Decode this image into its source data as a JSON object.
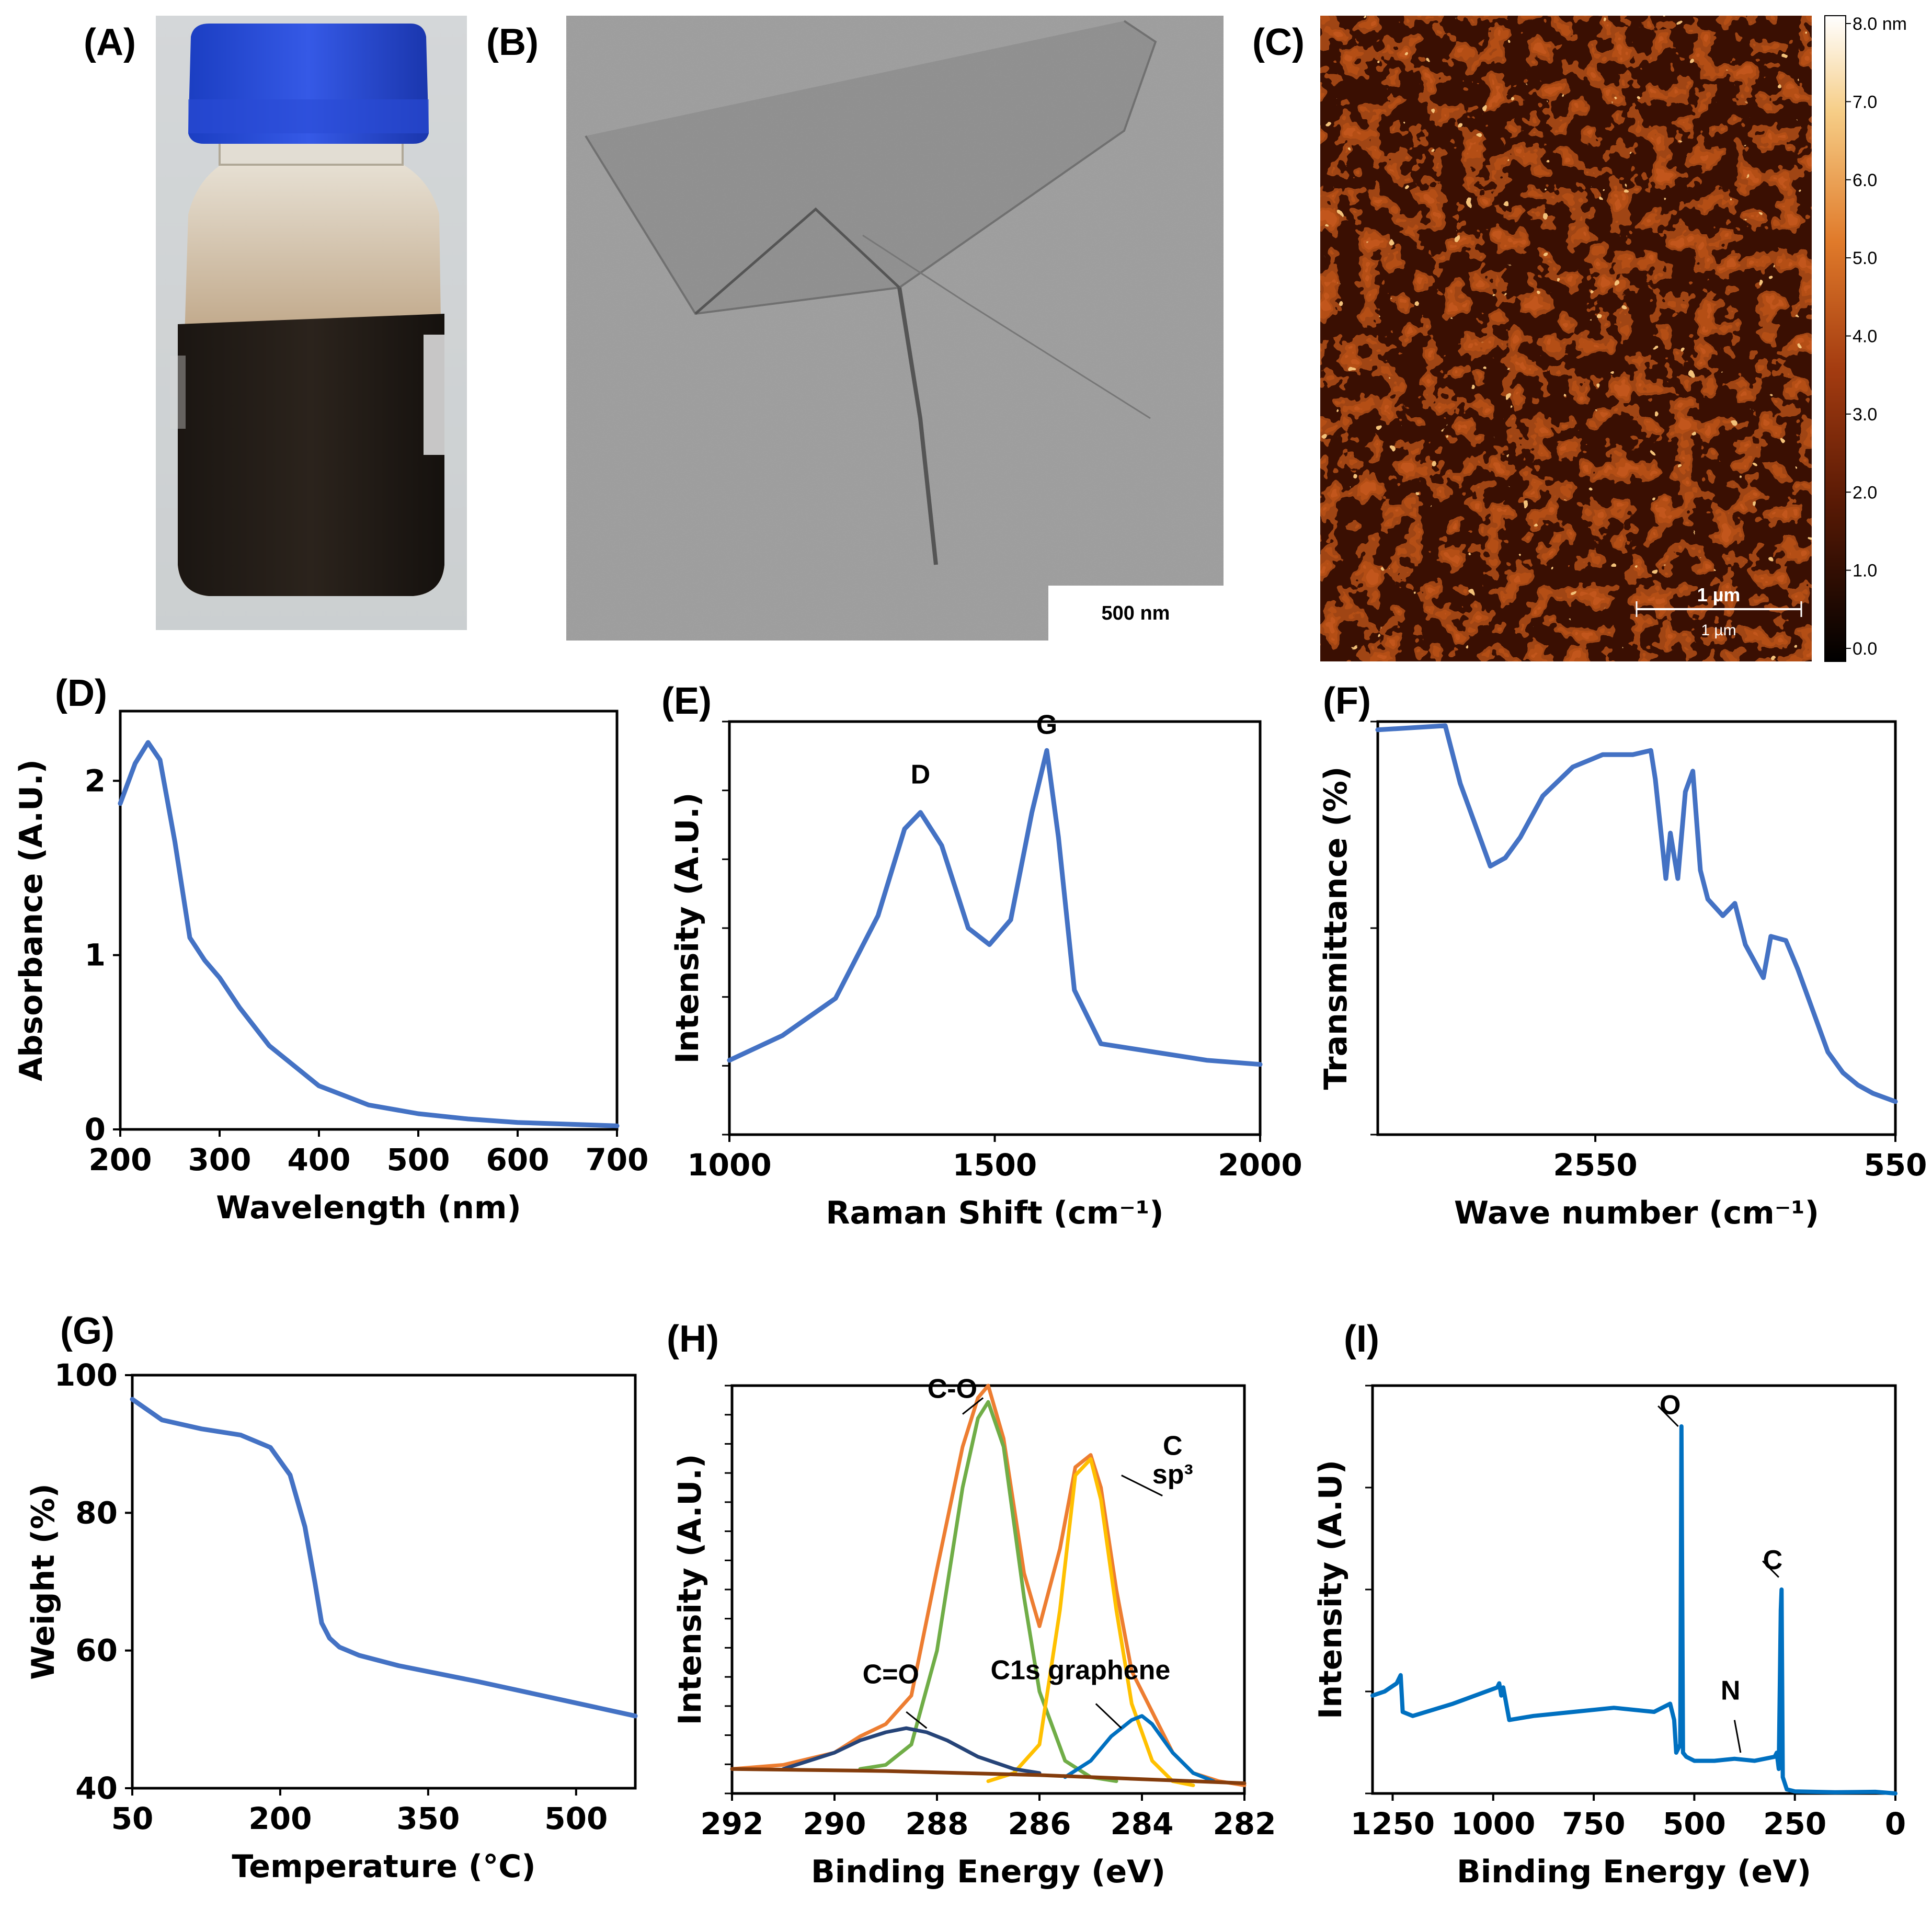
{
  "figure": {
    "panels": {
      "A": {
        "label": "(A)",
        "content": "photo of vial with dark dispersion"
      },
      "B": {
        "label": "(B)",
        "scale_bar": "500 nm"
      },
      "C": {
        "label": "(C)",
        "scale_bar_text": "1 µm",
        "scale_bar_text2": "1 µm",
        "colorbar_ticks": [
          "8.0 nm",
          "7.0",
          "6.0",
          "5.0",
          "4.0",
          "3.0",
          "2.0",
          "1.0",
          "0.0"
        ]
      },
      "D": {
        "label": "(D)"
      },
      "E": {
        "label": "(E)"
      },
      "F": {
        "label": "(F)"
      },
      "G": {
        "label": "(G)"
      },
      "H": {
        "label": "(H)"
      },
      "I": {
        "label": "(I)"
      }
    },
    "colors": {
      "blue_line": "#4472C4",
      "orange": "#ED7D31",
      "green": "#70AD47",
      "yellow": "#FFC000",
      "navy": "#264478",
      "lightblue": "#0070C0",
      "brown": "#843C0C",
      "survey_blue": "#0070C0"
    }
  },
  "chart_data": [
    {
      "id": "D",
      "type": "line",
      "xlabel": "Wavelength (nm)",
      "ylabel": "Absorbance (A.U.)",
      "xlim": [
        200,
        700
      ],
      "ylim": [
        0,
        2.4
      ],
      "xticks": [
        200,
        300,
        400,
        500,
        600,
        700
      ],
      "yticks": [
        0,
        1,
        2
      ],
      "x": [
        200,
        215,
        228,
        240,
        255,
        270,
        285,
        300,
        320,
        350,
        400,
        450,
        500,
        550,
        600,
        650,
        700
      ],
      "y": [
        1.87,
        2.1,
        2.22,
        2.12,
        1.65,
        1.1,
        0.97,
        0.87,
        0.7,
        0.48,
        0.25,
        0.14,
        0.09,
        0.06,
        0.04,
        0.03,
        0.02
      ]
    },
    {
      "id": "E",
      "type": "line",
      "xlabel": "Raman Shift (cm⁻¹)",
      "ylabel": "Intensity (A.U.)",
      "xlim": [
        1000,
        2000
      ],
      "ylim": [
        0,
        1
      ],
      "xticks": [
        1000,
        1500,
        2000
      ],
      "annotations": [
        {
          "text": "D",
          "x": 1360,
          "y": 0.85
        },
        {
          "text": "G",
          "x": 1598,
          "y": 0.97
        }
      ],
      "x": [
        1000,
        1100,
        1200,
        1280,
        1330,
        1360,
        1400,
        1450,
        1490,
        1530,
        1570,
        1598,
        1620,
        1650,
        1700,
        1800,
        1900,
        2000
      ],
      "y": [
        0.18,
        0.24,
        0.33,
        0.53,
        0.74,
        0.78,
        0.7,
        0.5,
        0.46,
        0.52,
        0.78,
        0.93,
        0.72,
        0.35,
        0.22,
        0.2,
        0.18,
        0.17
      ]
    },
    {
      "id": "F",
      "type": "line",
      "xlabel": "Wave number (cm⁻¹)",
      "ylabel": "Transmittance (%)",
      "xlim": [
        4000,
        550
      ],
      "ylim": [
        0,
        1
      ],
      "xticks": [
        2550,
        550
      ],
      "x": [
        4000,
        3550,
        3450,
        3400,
        3250,
        3150,
        3050,
        2900,
        2700,
        2500,
        2300,
        2180,
        2150,
        2080,
        2050,
        2000,
        1950,
        1900,
        1850,
        1800,
        1700,
        1620,
        1550,
        1430,
        1380,
        1280,
        1200,
        1100,
        1000,
        900,
        800,
        700,
        550
      ],
      "y": [
        0.98,
        0.99,
        0.85,
        0.8,
        0.65,
        0.67,
        0.72,
        0.82,
        0.89,
        0.92,
        0.92,
        0.93,
        0.86,
        0.62,
        0.73,
        0.62,
        0.83,
        0.88,
        0.64,
        0.57,
        0.53,
        0.56,
        0.46,
        0.38,
        0.48,
        0.47,
        0.4,
        0.3,
        0.2,
        0.15,
        0.12,
        0.1,
        0.08
      ]
    },
    {
      "id": "G",
      "type": "line",
      "xlabel": "Temperature (°C)",
      "ylabel": "Weight (%)",
      "xlim": [
        50,
        560
      ],
      "ylim": [
        40,
        100
      ],
      "xticks": [
        50,
        200,
        350,
        500
      ],
      "yticks": [
        40,
        60,
        80,
        100
      ],
      "x": [
        50,
        80,
        120,
        160,
        190,
        210,
        225,
        235,
        242,
        250,
        260,
        280,
        320,
        400,
        480,
        560
      ],
      "y": [
        96.5,
        93.5,
        92.2,
        91.3,
        89.5,
        85.5,
        78,
        70,
        64,
        61.8,
        60.5,
        59.3,
        57.8,
        55.5,
        53,
        50.5
      ]
    },
    {
      "id": "H",
      "type": "line",
      "xlabel": "Binding Energy (eV)",
      "ylabel": "Intensity (A.U.)",
      "xlim": [
        292,
        282
      ],
      "ylim": [
        0,
        1
      ],
      "xticks": [
        292,
        290,
        288,
        286,
        284,
        282
      ],
      "annotations": [
        {
          "text": "C-O",
          "x": 287.7,
          "y": 0.97
        },
        {
          "text": "C",
          "x": 283.4,
          "y": 0.83
        },
        {
          "text": "sp³",
          "x": 283.4,
          "y": 0.76
        },
        {
          "text": "C=O",
          "x": 288.9,
          "y": 0.27
        },
        {
          "text": "C1s graphene",
          "x": 285.2,
          "y": 0.28
        }
      ],
      "series": [
        {
          "name": "envelope",
          "x": [
            292,
            291,
            290,
            289.5,
            289,
            288.5,
            288,
            287.5,
            287.2,
            287,
            286.7,
            286.3,
            286,
            285.6,
            285.3,
            285,
            284.8,
            284.5,
            284.2,
            283.8,
            283.4,
            283,
            282.5,
            282
          ],
          "y": [
            0.06,
            0.07,
            0.1,
            0.14,
            0.17,
            0.24,
            0.55,
            0.85,
            0.97,
            1.0,
            0.87,
            0.54,
            0.41,
            0.6,
            0.8,
            0.83,
            0.75,
            0.5,
            0.3,
            0.2,
            0.1,
            0.05,
            0.03,
            0.02
          ]
        },
        {
          "name": "C-O",
          "x": [
            289.5,
            289,
            288.5,
            288,
            287.5,
            287.2,
            287,
            286.7,
            286.3,
            286,
            285.5,
            285,
            284.5
          ],
          "y": [
            0.06,
            0.07,
            0.12,
            0.35,
            0.75,
            0.92,
            0.96,
            0.85,
            0.48,
            0.25,
            0.08,
            0.04,
            0.03
          ]
        },
        {
          "name": "C sp3",
          "x": [
            287,
            286.5,
            286,
            285.6,
            285.3,
            285,
            284.8,
            284.5,
            284.2,
            283.8,
            283.4,
            283
          ],
          "y": [
            0.03,
            0.05,
            0.12,
            0.45,
            0.78,
            0.82,
            0.72,
            0.45,
            0.22,
            0.08,
            0.03,
            0.02
          ]
        },
        {
          "name": "C=O",
          "x": [
            291,
            290,
            289.5,
            289,
            288.6,
            288.2,
            287.8,
            287.2,
            286.5,
            286
          ],
          "y": [
            0.06,
            0.1,
            0.13,
            0.15,
            0.16,
            0.15,
            0.13,
            0.09,
            0.06,
            0.05
          ]
        },
        {
          "name": "C1s graphene",
          "x": [
            285.5,
            285,
            284.6,
            284.2,
            284,
            283.8,
            283.4,
            283,
            282.6
          ],
          "y": [
            0.04,
            0.08,
            0.14,
            0.18,
            0.19,
            0.17,
            0.1,
            0.05,
            0.03
          ]
        },
        {
          "name": "baseline",
          "x": [
            292,
            289,
            286,
            284,
            282
          ],
          "y": [
            0.06,
            0.055,
            0.045,
            0.035,
            0.025
          ]
        }
      ]
    },
    {
      "id": "I",
      "type": "line",
      "xlabel": "Binding Energy (eV)",
      "ylabel": "Intensity (A.U)",
      "xlim": [
        1300,
        0
      ],
      "ylim": [
        0,
        1
      ],
      "xticks": [
        1250,
        1000,
        750,
        500,
        250,
        0
      ],
      "annotations": [
        {
          "text": "O",
          "x": 560,
          "y": 0.93
        },
        {
          "text": "C",
          "x": 305,
          "y": 0.55
        },
        {
          "text": "N",
          "x": 410,
          "y": 0.23
        }
      ],
      "x": [
        1300,
        1270,
        1240,
        1230,
        1225,
        1200,
        1100,
        990,
        985,
        980,
        975,
        960,
        900,
        800,
        700,
        600,
        560,
        550,
        545,
        535,
        532,
        528,
        520,
        500,
        450,
        400,
        350,
        300,
        295,
        290,
        285,
        283,
        280,
        270,
        250,
        150,
        50,
        0
      ],
      "y": [
        0.24,
        0.25,
        0.27,
        0.29,
        0.2,
        0.19,
        0.22,
        0.26,
        0.27,
        0.24,
        0.26,
        0.18,
        0.19,
        0.2,
        0.21,
        0.2,
        0.22,
        0.18,
        0.1,
        0.12,
        0.9,
        0.1,
        0.09,
        0.08,
        0.08,
        0.085,
        0.08,
        0.09,
        0.1,
        0.06,
        0.45,
        0.5,
        0.04,
        0.01,
        0.005,
        0.003,
        0.004,
        0.0
      ]
    }
  ]
}
